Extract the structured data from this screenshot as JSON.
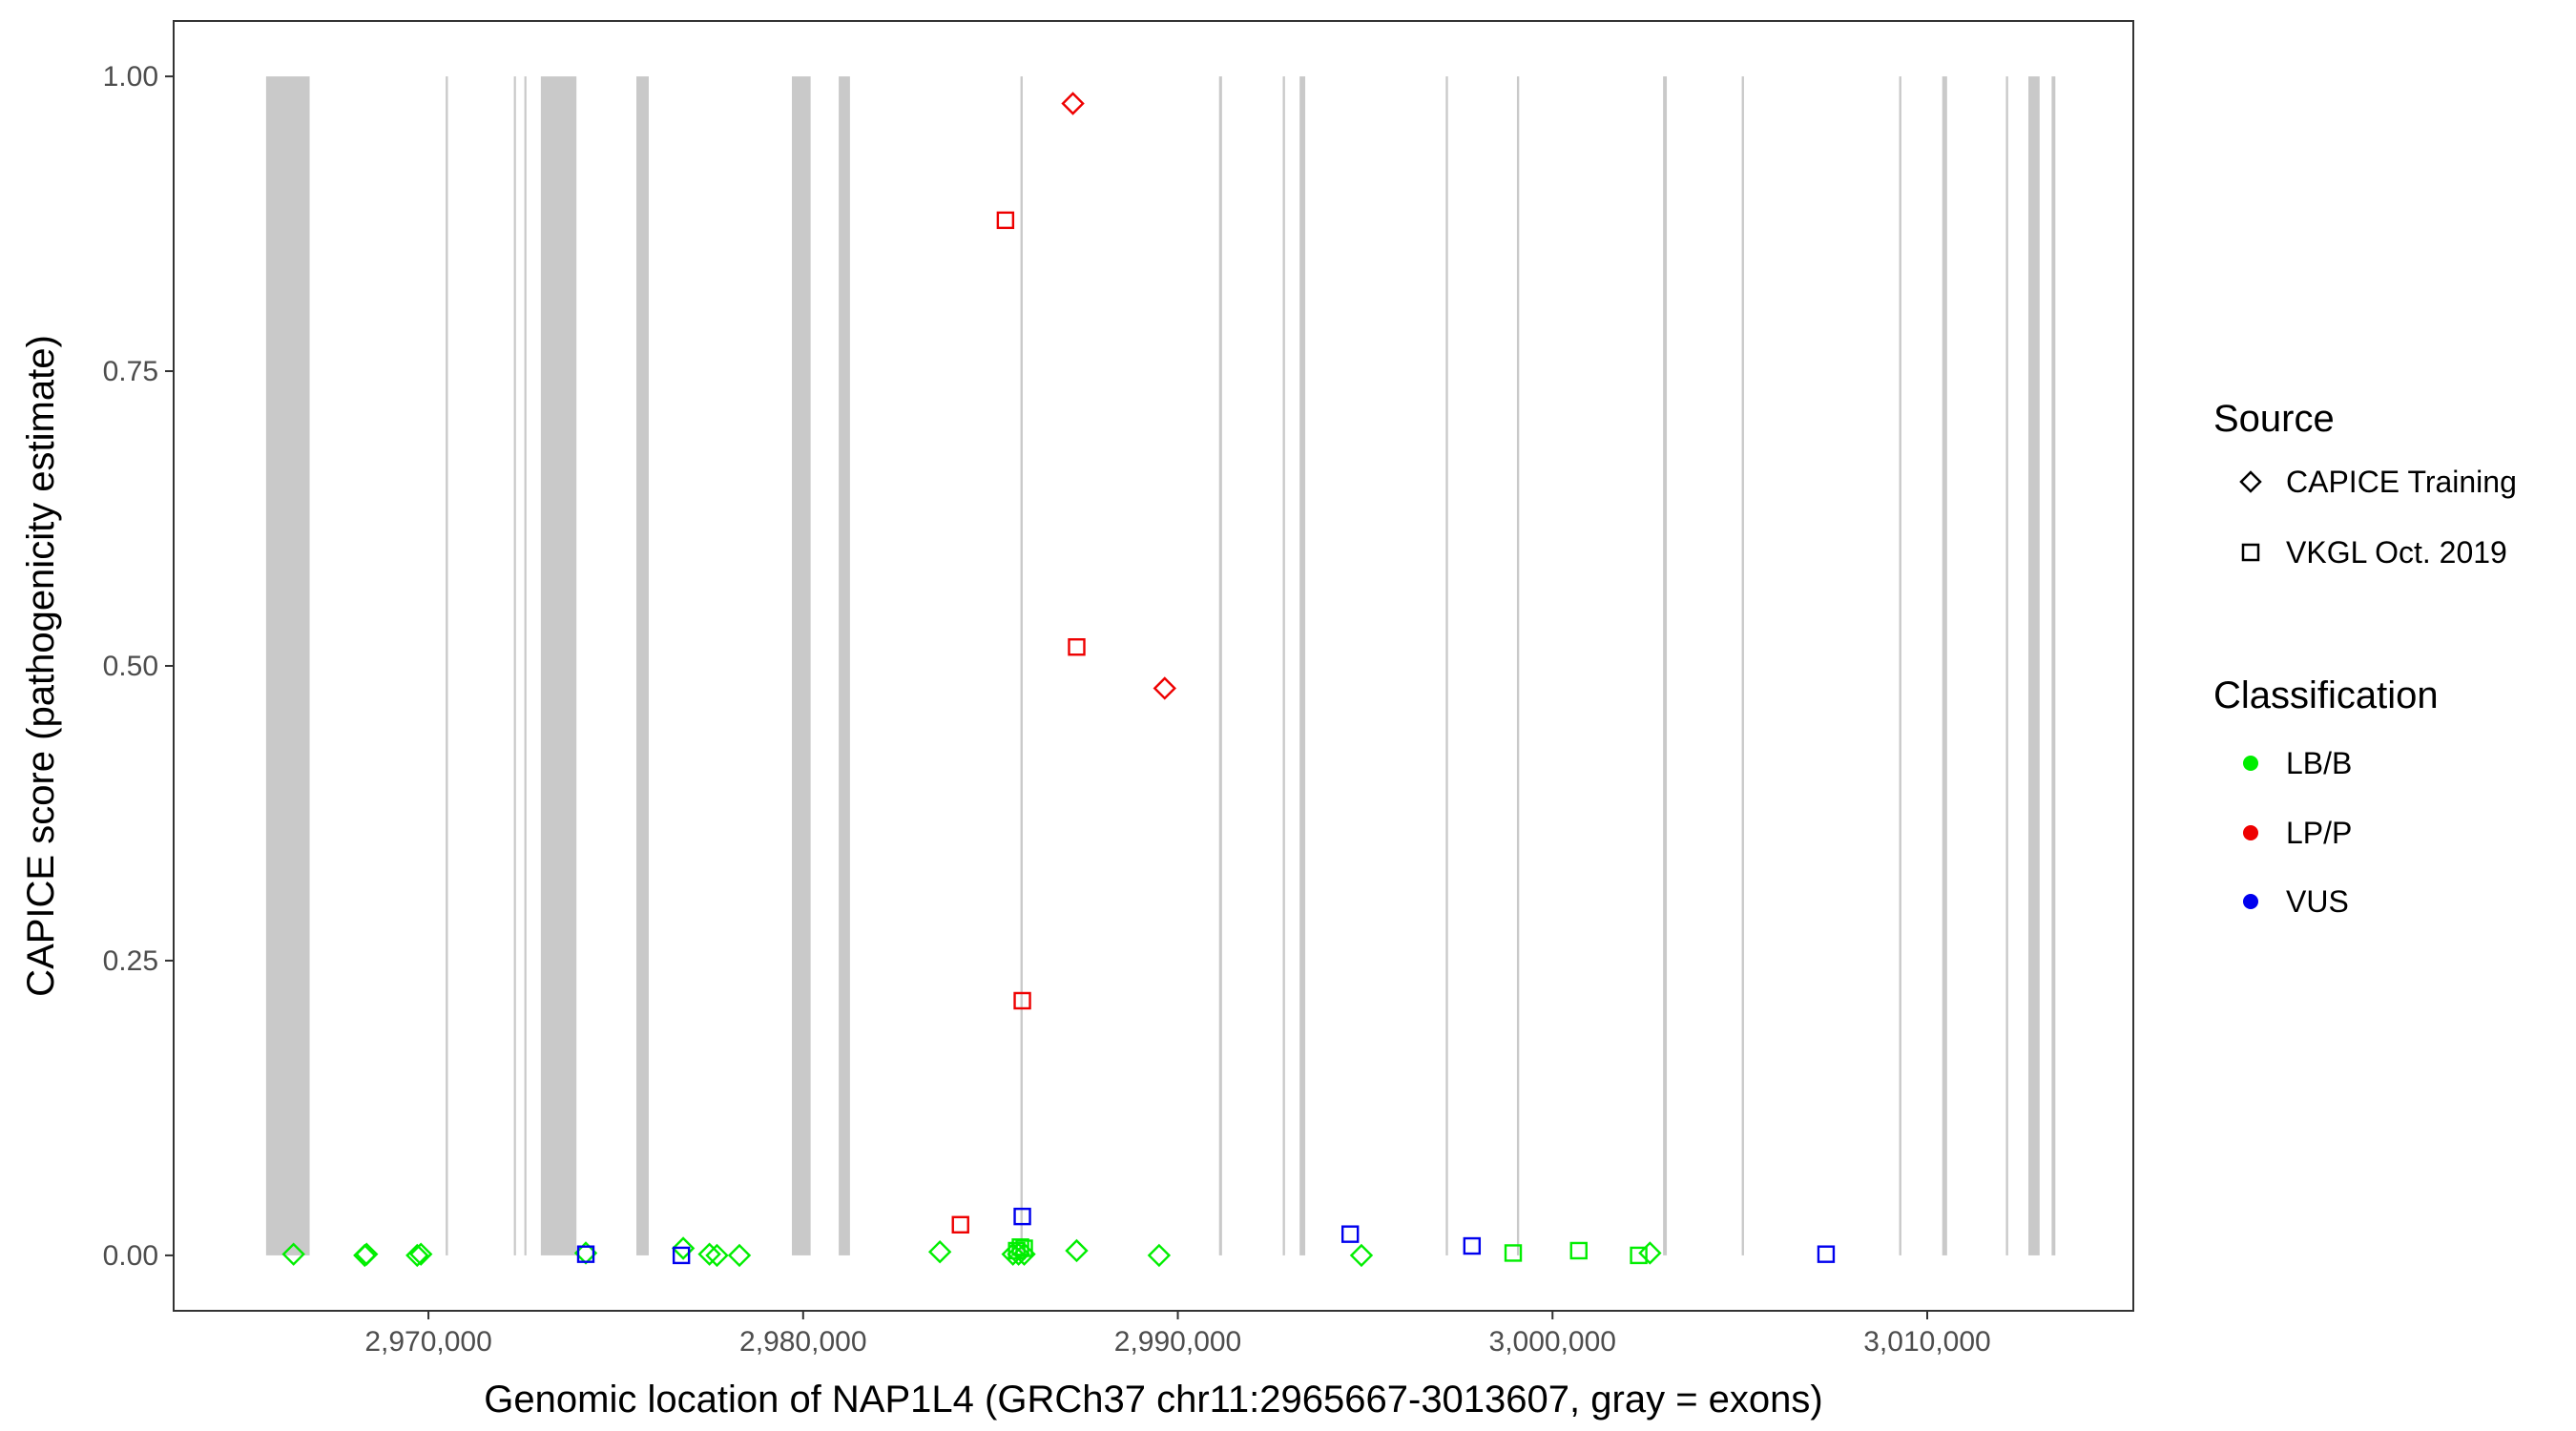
{
  "chart_data": {
    "type": "scatter",
    "title": "",
    "xlabel": "Genomic location of NAP1L4 (GRCh37 chr11:2965667-3013607, gray = exons)",
    "ylabel": "CAPICE score (pathogenicity estimate)",
    "xlim": [
      2963200,
      3015500
    ],
    "ylim": [
      -0.047,
      1.047
    ],
    "x_ticks": [
      2970000,
      2980000,
      2990000,
      3000000,
      3010000
    ],
    "x_tick_labels": [
      "2,970,000",
      "2,980,000",
      "2,990,000",
      "3,000,000",
      "3,010,000"
    ],
    "y_ticks": [
      0,
      0.25,
      0.5,
      0.75,
      1.0
    ],
    "y_tick_labels": [
      "0.00",
      "0.25",
      "0.50",
      "0.75",
      "1.00"
    ],
    "grid": false,
    "exon_color": "#c9c9c9",
    "exons": [
      [
        2965667,
        2966830
      ],
      [
        2970460,
        2970520
      ],
      [
        2972280,
        2972330
      ],
      [
        2972560,
        2972600
      ],
      [
        2973000,
        2973950
      ],
      [
        2975550,
        2975880
      ],
      [
        2979700,
        2980200
      ],
      [
        2980950,
        2981250
      ],
      [
        2985800,
        2985860
      ],
      [
        2991100,
        2991180
      ],
      [
        2992800,
        2992860
      ],
      [
        2993250,
        2993400
      ],
      [
        2997150,
        2997210
      ],
      [
        2999050,
        2999110
      ],
      [
        3002950,
        3003050
      ],
      [
        3005050,
        3005110
      ],
      [
        3009250,
        3009310
      ],
      [
        3010400,
        3010530
      ],
      [
        3012100,
        3012160
      ],
      [
        3012700,
        3013000
      ],
      [
        3013320,
        3013420
      ]
    ],
    "legend": {
      "position": "right",
      "source_title": "Source",
      "source_entries": [
        {
          "label": "CAPICE Training",
          "shape": "diamond"
        },
        {
          "label": "VKGL Oct. 2019",
          "shape": "square"
        }
      ],
      "classification_title": "Classification",
      "classification_entries": [
        {
          "label": "LB/B",
          "color": "#00ee00"
        },
        {
          "label": "LP/P",
          "color": "#ee0000"
        },
        {
          "label": "VUS",
          "color": "#0000ee"
        }
      ]
    },
    "series": [
      {
        "source": "CAPICE Training",
        "classification": "LB/B",
        "shape": "diamond",
        "color": "#00ee00",
        "points": [
          [
            2966400,
            0.001
          ],
          [
            2968300,
            0.0
          ],
          [
            2968350,
            0.001
          ],
          [
            2969700,
            0.0
          ],
          [
            2969800,
            0.001
          ],
          [
            2974200,
            0.002
          ],
          [
            2976800,
            0.006
          ],
          [
            2977500,
            0.001
          ],
          [
            2977700,
            0.0
          ],
          [
            2978300,
            0.0
          ],
          [
            2983650,
            0.003
          ],
          [
            2985600,
            0.001
          ],
          [
            2985750,
            0.001
          ],
          [
            2985900,
            0.001
          ],
          [
            2987300,
            0.004
          ],
          [
            2989500,
            0.0
          ],
          [
            2994900,
            0.0
          ],
          [
            3002600,
            0.002
          ]
        ]
      },
      {
        "source": "VKGL Oct. 2019",
        "classification": "LB/B",
        "shape": "square",
        "color": "#00ee00",
        "points": [
          [
            2985700,
            0.004
          ],
          [
            2985800,
            0.007
          ],
          [
            2985900,
            0.006
          ],
          [
            2998950,
            0.002
          ],
          [
            3000700,
            0.004
          ],
          [
            3002300,
            0.0
          ]
        ]
      },
      {
        "source": "CAPICE Training",
        "classification": "LP/P",
        "shape": "diamond",
        "color": "#ee0000",
        "points": [
          [
            2987200,
            0.977
          ],
          [
            2989650,
            0.481
          ]
        ]
      },
      {
        "source": "VKGL Oct. 2019",
        "classification": "LP/P",
        "shape": "square",
        "color": "#ee0000",
        "points": [
          [
            2985400,
            0.878
          ],
          [
            2987300,
            0.516
          ],
          [
            2985850,
            0.216
          ],
          [
            2984200,
            0.026
          ]
        ]
      },
      {
        "source": "VKGL Oct. 2019",
        "classification": "VUS",
        "shape": "square",
        "color": "#0000ee",
        "points": [
          [
            2974200,
            0.001
          ],
          [
            2976750,
            0.0
          ],
          [
            2985850,
            0.033
          ],
          [
            2994600,
            0.018
          ],
          [
            2997850,
            0.008
          ],
          [
            3007300,
            0.001
          ]
        ]
      }
    ]
  }
}
